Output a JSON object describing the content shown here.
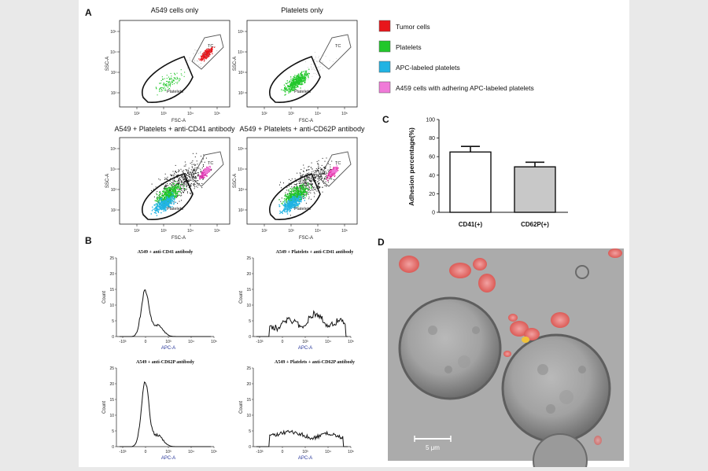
{
  "panels": {
    "A": {
      "label": "A",
      "plots": [
        {
          "title": "A549 cells only",
          "xlabel": "FSC-A",
          "ylabel": "SSC-A",
          "gate_platelets": "Platelets",
          "gate_tc": "TC"
        },
        {
          "title": "Platelets only",
          "xlabel": "FSC-A",
          "ylabel": "SSC-A",
          "gate_platelets": "Platelets",
          "gate_tc": "TC"
        },
        {
          "title": "A549 + Platelets + anti-CD41 antibody",
          "xlabel": "FSC-A",
          "ylabel": "SSC-A",
          "gate_platelets": "Platelets",
          "gate_tc": "TC"
        },
        {
          "title": "A549 + Platelets + anti-CD62P antibody",
          "xlabel": "FSC-A",
          "ylabel": "SSC-A",
          "gate_platelets": "Platelets",
          "gate_tc": "TC"
        }
      ],
      "x_ticks": [
        "10²",
        "10³",
        "10⁴",
        "10⁵"
      ],
      "y_ticks": [
        "10²",
        "10³",
        "10⁴",
        "10⁵"
      ],
      "legend": [
        {
          "label": "Tumor cells",
          "color": "#e8161b"
        },
        {
          "label": "Platelets",
          "color": "#22c72b"
        },
        {
          "label": "APC-labeled platelets",
          "color": "#21b3e3"
        },
        {
          "label": "A459 cells with adhering APC-labeled platelets",
          "color": "#f07ad8"
        }
      ]
    },
    "B": {
      "label": "B",
      "plots": [
        {
          "title": "A549 + anti-CD41 antibody",
          "xlabel": "APC-A",
          "ylabel": "Count"
        },
        {
          "title": "A549 + Platelets + anti-CD41 antibody",
          "xlabel": "APC-A",
          "ylabel": "Count"
        },
        {
          "title": "A549 + anti-CD62P antibody",
          "xlabel": "APC-A",
          "ylabel": "Count"
        },
        {
          "title": "A549 + Platelets + anti-CD62P antibody",
          "xlabel": "APC-A",
          "ylabel": "Count"
        }
      ],
      "x_ticks": [
        "-10³",
        "0",
        "10³",
        "10⁴",
        "10⁵"
      ],
      "y_ticks": [
        "0",
        "5",
        "10",
        "15",
        "20",
        "25"
      ]
    },
    "C": {
      "label": "C"
    },
    "D": {
      "label": "D",
      "scale_bar": "5 μm"
    }
  },
  "chart_data": {
    "type": "bar",
    "categories": [
      "CD41(+)",
      "CD62P(+)"
    ],
    "values": [
      65,
      49
    ],
    "errors": [
      6,
      5
    ],
    "bar_colors": [
      "#ffffff",
      "#c8c8c8"
    ],
    "title": "",
    "xlabel": "",
    "ylabel": "Adhesion percentage(%)",
    "ylim": [
      0,
      100
    ],
    "yticks": [
      "0",
      "20",
      "40",
      "60",
      "80",
      "100"
    ],
    "grid": false
  }
}
